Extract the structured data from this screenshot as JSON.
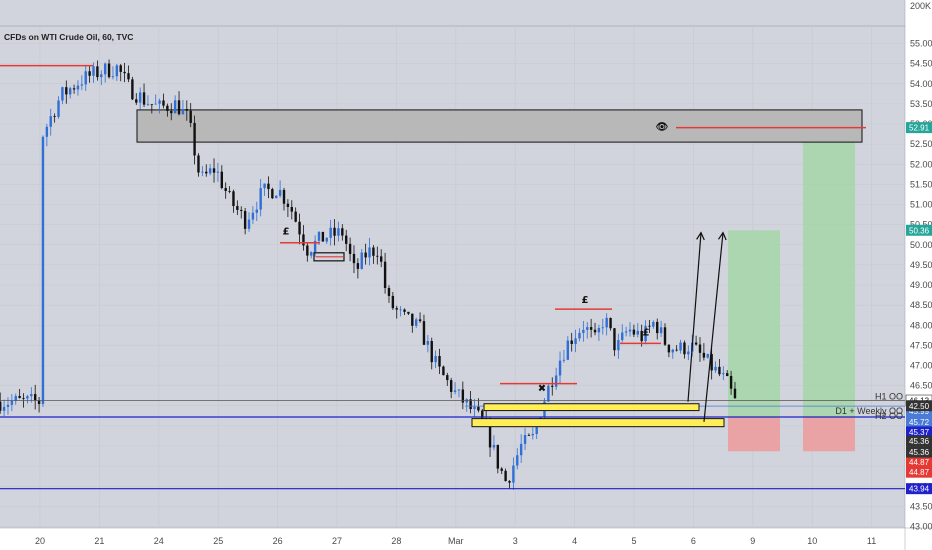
{
  "title": "CFDs on WTI Crude Oil, 60, TVC",
  "colors": {
    "up": "#2f6fd6",
    "down": "#111111",
    "bg": "#d1d4dc",
    "green_zone": "#a5d6a7",
    "red_zone": "#ef9a9a",
    "yellow": "#ffee58",
    "red_line": "#e53935",
    "blue_line": "#1e22c8"
  },
  "chart_data": {
    "type": "candlestick",
    "ylim": [
      43,
      56
    ],
    "y_top_label": "200K",
    "y_ticks": [
      "43.00",
      "43.50",
      "44.00",
      "44.50",
      "45.00",
      "45.50",
      "46.00",
      "46.50",
      "47.00",
      "47.50",
      "48.00",
      "48.50",
      "49.00",
      "49.50",
      "50.00",
      "50.50",
      "51.00",
      "51.50",
      "52.00",
      "52.50",
      "53.00",
      "53.50",
      "54.00",
      "54.50",
      "55.00"
    ],
    "x_labels": [
      "20",
      "21",
      "24",
      "25",
      "26",
      "27",
      "28",
      "Mar",
      "3",
      "4",
      "5",
      "6",
      "9",
      "10",
      "11"
    ],
    "path_points": [
      [
        0,
        52.6
      ],
      [
        0.35,
        53.7
      ],
      [
        0.7,
        54.1
      ],
      [
        1.0,
        54.3
      ],
      [
        1.3,
        54.4
      ],
      [
        1.5,
        53.9
      ],
      [
        1.75,
        53.6
      ],
      [
        2.0,
        53.4
      ],
      [
        2.3,
        53.5
      ],
      [
        2.5,
        53.1
      ],
      [
        2.7,
        51.6
      ],
      [
        2.95,
        51.9
      ],
      [
        3.2,
        51.1
      ],
      [
        3.45,
        50.6
      ],
      [
        3.75,
        51.3
      ],
      [
        4.0,
        51.4
      ],
      [
        4.2,
        51.0
      ],
      [
        4.5,
        49.9
      ],
      [
        4.8,
        50.2
      ],
      [
        5.1,
        50.3
      ],
      [
        5.3,
        49.3
      ],
      [
        5.5,
        49.8
      ],
      [
        5.7,
        49.9
      ],
      [
        5.85,
        48.6
      ],
      [
        6.1,
        48.2
      ],
      [
        6.4,
        47.9
      ],
      [
        6.7,
        46.9
      ],
      [
        7.0,
        46.3
      ],
      [
        7.2,
        46.0
      ],
      [
        7.5,
        45.5
      ],
      [
        7.7,
        44.6
      ],
      [
        7.85,
        44.1
      ],
      [
        8.1,
        45.0
      ],
      [
        8.3,
        45.2
      ],
      [
        8.45,
        46.0
      ],
      [
        8.7,
        47.0
      ],
      [
        8.9,
        47.6
      ],
      [
        9.15,
        48.0
      ],
      [
        9.35,
        47.6
      ],
      [
        9.5,
        48.2
      ],
      [
        9.7,
        47.4
      ],
      [
        9.9,
        47.9
      ],
      [
        10.15,
        47.7
      ],
      [
        10.35,
        48.1
      ],
      [
        10.55,
        47.5
      ],
      [
        10.75,
        47.4
      ],
      [
        10.95,
        47.5
      ],
      [
        11.15,
        47.2
      ],
      [
        11.35,
        46.9
      ],
      [
        11.55,
        46.6
      ],
      [
        11.7,
        46.1
      ]
    ],
    "levels": [
      {
        "name": "resistance-top",
        "price": 52.91,
        "badge": "52.91",
        "badge_color": "#26a69a"
      },
      {
        "name": "target-2",
        "price": 50.36,
        "badge": "50.36",
        "badge_color": "#26a69a"
      },
      {
        "name": "last-price",
        "price": 46.13,
        "badge": "46.13",
        "badge_color": "#ffffff"
      },
      {
        "name": "h2-open",
        "price": 45.99,
        "badge": "45.99",
        "badge_color": "#4a7bd6"
      },
      {
        "name": "d1-weekly-open",
        "price": 45.72,
        "badge": "45.72",
        "badge_color": "#4a7bd6"
      },
      {
        "name": "blue-upper",
        "price": 45.37,
        "badge": "45.37",
        "badge_color": "#1e22c8"
      },
      {
        "name": "stop-a",
        "price": 44.87,
        "badge": "44.87",
        "badge_color": "#e53935"
      },
      {
        "name": "stop-b",
        "price": 44.87,
        "badge": "44.87",
        "badge_color": "#e53935"
      },
      {
        "name": "blue-lower",
        "price": 43.94,
        "badge": "43.94",
        "badge_color": "#1e22c8"
      },
      {
        "name": "dark-a",
        "price": 45.36,
        "badge": "45.36",
        "badge_color": "#333333"
      },
      {
        "name": "dark-b",
        "price": 45.36,
        "badge": "45.36",
        "badge_color": "#333333"
      },
      {
        "name": "current",
        "price": 42.5,
        "badge": "42.50",
        "badge_color": "#333333"
      }
    ],
    "annotations": {
      "h1": "H1 OO",
      "h2": "H2 OO",
      "d1": "D1 + Weekly OO",
      "pound": "£",
      "cross": "✖",
      "eye": "👁"
    }
  }
}
